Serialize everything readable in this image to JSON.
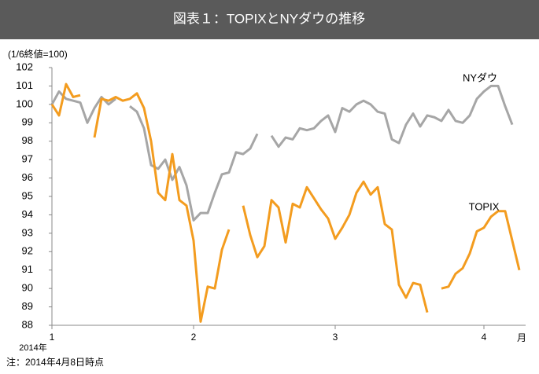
{
  "chart_data": {
    "type": "line",
    "title": "図表１：TOPIXとNYダウの推移",
    "y_label": "(1/6終値=100)",
    "x_unit": "月",
    "x_year": "2014年",
    "note": "注：2014年4月8日時点",
    "categories": [
      "1",
      null,
      null,
      null,
      null,
      null,
      null,
      null,
      null,
      null,
      null,
      null,
      null,
      null,
      null,
      null,
      null,
      null,
      null,
      null,
      "2",
      null,
      null,
      null,
      null,
      null,
      null,
      null,
      null,
      null,
      null,
      null,
      null,
      null,
      null,
      null,
      null,
      null,
      null,
      null,
      "3",
      null,
      null,
      null,
      null,
      null,
      null,
      null,
      null,
      null,
      null,
      null,
      null,
      null,
      null,
      null,
      null,
      null,
      null,
      null,
      null,
      "4",
      null,
      null,
      null,
      null,
      null
    ],
    "series": [
      {
        "name": "NYダウ",
        "color": "#a6a6a6",
        "values": [
          100,
          100.7,
          100.3,
          100.2,
          100.1,
          99.0,
          99.8,
          100.4,
          100.0,
          100.3,
          null,
          99.9,
          99.6,
          98.7,
          96.7,
          96.5,
          97.0,
          95.9,
          96.6,
          95.6,
          93.7,
          94.1,
          94.1,
          95.2,
          96.2,
          96.3,
          97.4,
          97.3,
          97.6,
          98.4,
          null,
          98.3,
          97.7,
          98.2,
          98.1,
          98.7,
          98.6,
          98.7,
          99.1,
          99.4,
          98.5,
          99.8,
          99.6,
          100.0,
          100.2,
          100.0,
          99.6,
          99.5,
          98.1,
          97.9,
          98.9,
          99.5,
          98.8,
          99.4,
          99.3,
          99.1,
          99.7,
          99.1,
          99.0,
          99.4,
          100.3,
          100.7,
          101.0,
          101.0,
          99.9,
          98.9,
          null
        ]
      },
      {
        "name": "TOPIX",
        "color": "#f39c1f",
        "values": [
          100,
          99.4,
          101.1,
          100.4,
          100.5,
          null,
          98.2,
          100.3,
          100.2,
          100.4,
          100.2,
          100.3,
          100.6,
          99.8,
          98.0,
          95.2,
          94.8,
          97.3,
          94.8,
          94.5,
          92.6,
          88.2,
          90.1,
          90.0,
          92.1,
          93.2,
          null,
          94.5,
          92.9,
          91.7,
          92.3,
          94.8,
          94.4,
          92.5,
          94.6,
          94.4,
          95.5,
          94.9,
          94.3,
          93.8,
          92.7,
          93.3,
          94.0,
          95.2,
          95.8,
          95.1,
          95.5,
          93.5,
          93.2,
          90.2,
          89.5,
          90.3,
          90.2,
          88.7,
          null,
          90.0,
          90.1,
          90.8,
          91.1,
          91.9,
          93.1,
          93.3,
          93.9,
          94.2,
          94.2,
          92.6,
          91.0
        ]
      }
    ],
    "ylim": [
      88,
      102
    ],
    "yticks": [
      88,
      89,
      90,
      91,
      92,
      93,
      94,
      95,
      96,
      97,
      98,
      99,
      100,
      101,
      102
    ],
    "grid": false
  }
}
